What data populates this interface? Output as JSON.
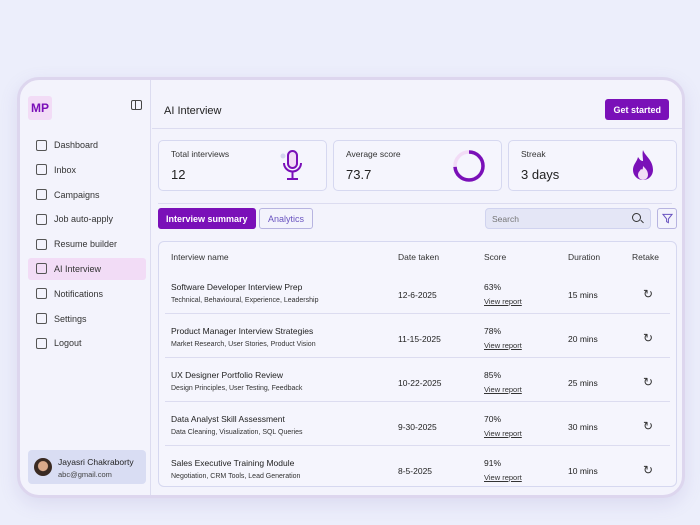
{
  "sidebar": {
    "logo": "MP",
    "items": [
      {
        "label": "Dashboard",
        "icon": "grid-icon"
      },
      {
        "label": "Inbox",
        "icon": "inbox-icon"
      },
      {
        "label": "Campaigns",
        "icon": "megaphone-icon"
      },
      {
        "label": "Job auto-apply",
        "icon": "briefcase-icon"
      },
      {
        "label": "Resume builder",
        "icon": "document-icon"
      },
      {
        "label": "AI Interview",
        "icon": "user-voice-icon",
        "active": true
      },
      {
        "label": "Notifications",
        "icon": "bell-icon"
      },
      {
        "label": "Settings",
        "icon": "gear-icon"
      },
      {
        "label": "Logout",
        "icon": "logout-icon"
      }
    ],
    "user": {
      "name": "Jayasri Chakraborty",
      "email": "abc@gmail.com"
    }
  },
  "header": {
    "title": "AI Interview",
    "cta": "Get started"
  },
  "stats": [
    {
      "label": "Total interviews",
      "value": "12",
      "icon": "microphone-icon"
    },
    {
      "label": "Average score",
      "value": "73.7",
      "icon": "progress-ring-icon"
    },
    {
      "label": "Streak",
      "value": "3 days",
      "icon": "flame-icon"
    }
  ],
  "tabs": [
    {
      "label": "Interview summary",
      "active": true
    },
    {
      "label": "Analytics"
    }
  ],
  "search": {
    "placeholder": "Search"
  },
  "table": {
    "headers": [
      "Interview name",
      "Date taken",
      "Score",
      "Duration",
      "Retake"
    ],
    "view_label": "View report",
    "rows": [
      {
        "name": "Software Developer Interview Prep",
        "tags": "Technical, Behavioural, Experience, Leadership",
        "date": "12-6-2025",
        "score": "63%",
        "duration": "15 mins"
      },
      {
        "name": "Product Manager Interview Strategies",
        "tags": "Market Research, User Stories, Product Vision",
        "date": "11-15-2025",
        "score": "78%",
        "duration": "20 mins"
      },
      {
        "name": "UX Designer Portfolio Review",
        "tags": "Design Principles, User Testing, Feedback",
        "date": "10-22-2025",
        "score": "85%",
        "duration": "25 mins"
      },
      {
        "name": "Data Analyst Skill Assessment",
        "tags": "Data Cleaning, Visualization, SQL Queries",
        "date": "9-30-2025",
        "score": "70%",
        "duration": "30 mins"
      },
      {
        "name": "Sales Executive Training Module",
        "tags": "Negotiation, CRM Tools, Lead Generation",
        "date": "8-5-2025",
        "score": "91%",
        "duration": "10 mins"
      }
    ]
  },
  "colors": {
    "accent": "#7a10b8",
    "active_bg": "#f2dcf6",
    "background": "#f3f3fc"
  }
}
